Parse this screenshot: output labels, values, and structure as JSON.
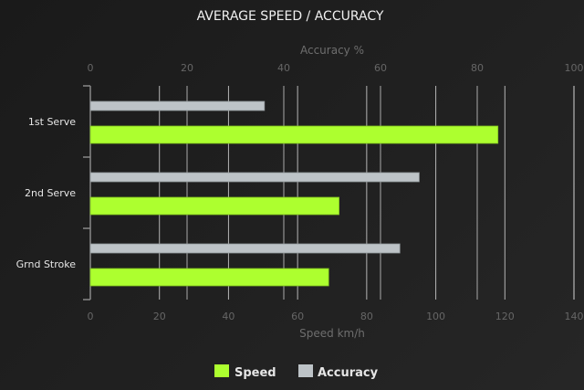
{
  "chart_data": {
    "type": "bar",
    "orientation": "horizontal",
    "title": "AVERAGE SPEED / ACCURACY",
    "categories": [
      "1st Serve",
      "2nd Serve",
      "Grnd Stroke"
    ],
    "series": [
      {
        "name": "Speed",
        "axis": "bottom",
        "color": "#adff2f",
        "values": [
          118,
          72,
          69
        ]
      },
      {
        "name": "Accuracy",
        "axis": "top",
        "color": "#bdc3c7",
        "values": [
          36,
          68,
          64
        ]
      }
    ],
    "top_axis": {
      "label": "Accuracy %",
      "range": [
        0,
        100
      ],
      "ticks": [
        "0",
        "20",
        "40",
        "60",
        "80",
        "100"
      ]
    },
    "bottom_axis": {
      "label": "Speed km/h",
      "range": [
        0,
        140
      ],
      "ticks": [
        "0",
        "20",
        "40",
        "60",
        "80",
        "100",
        "120",
        "140"
      ]
    },
    "grid": true,
    "legend": "bottom"
  }
}
